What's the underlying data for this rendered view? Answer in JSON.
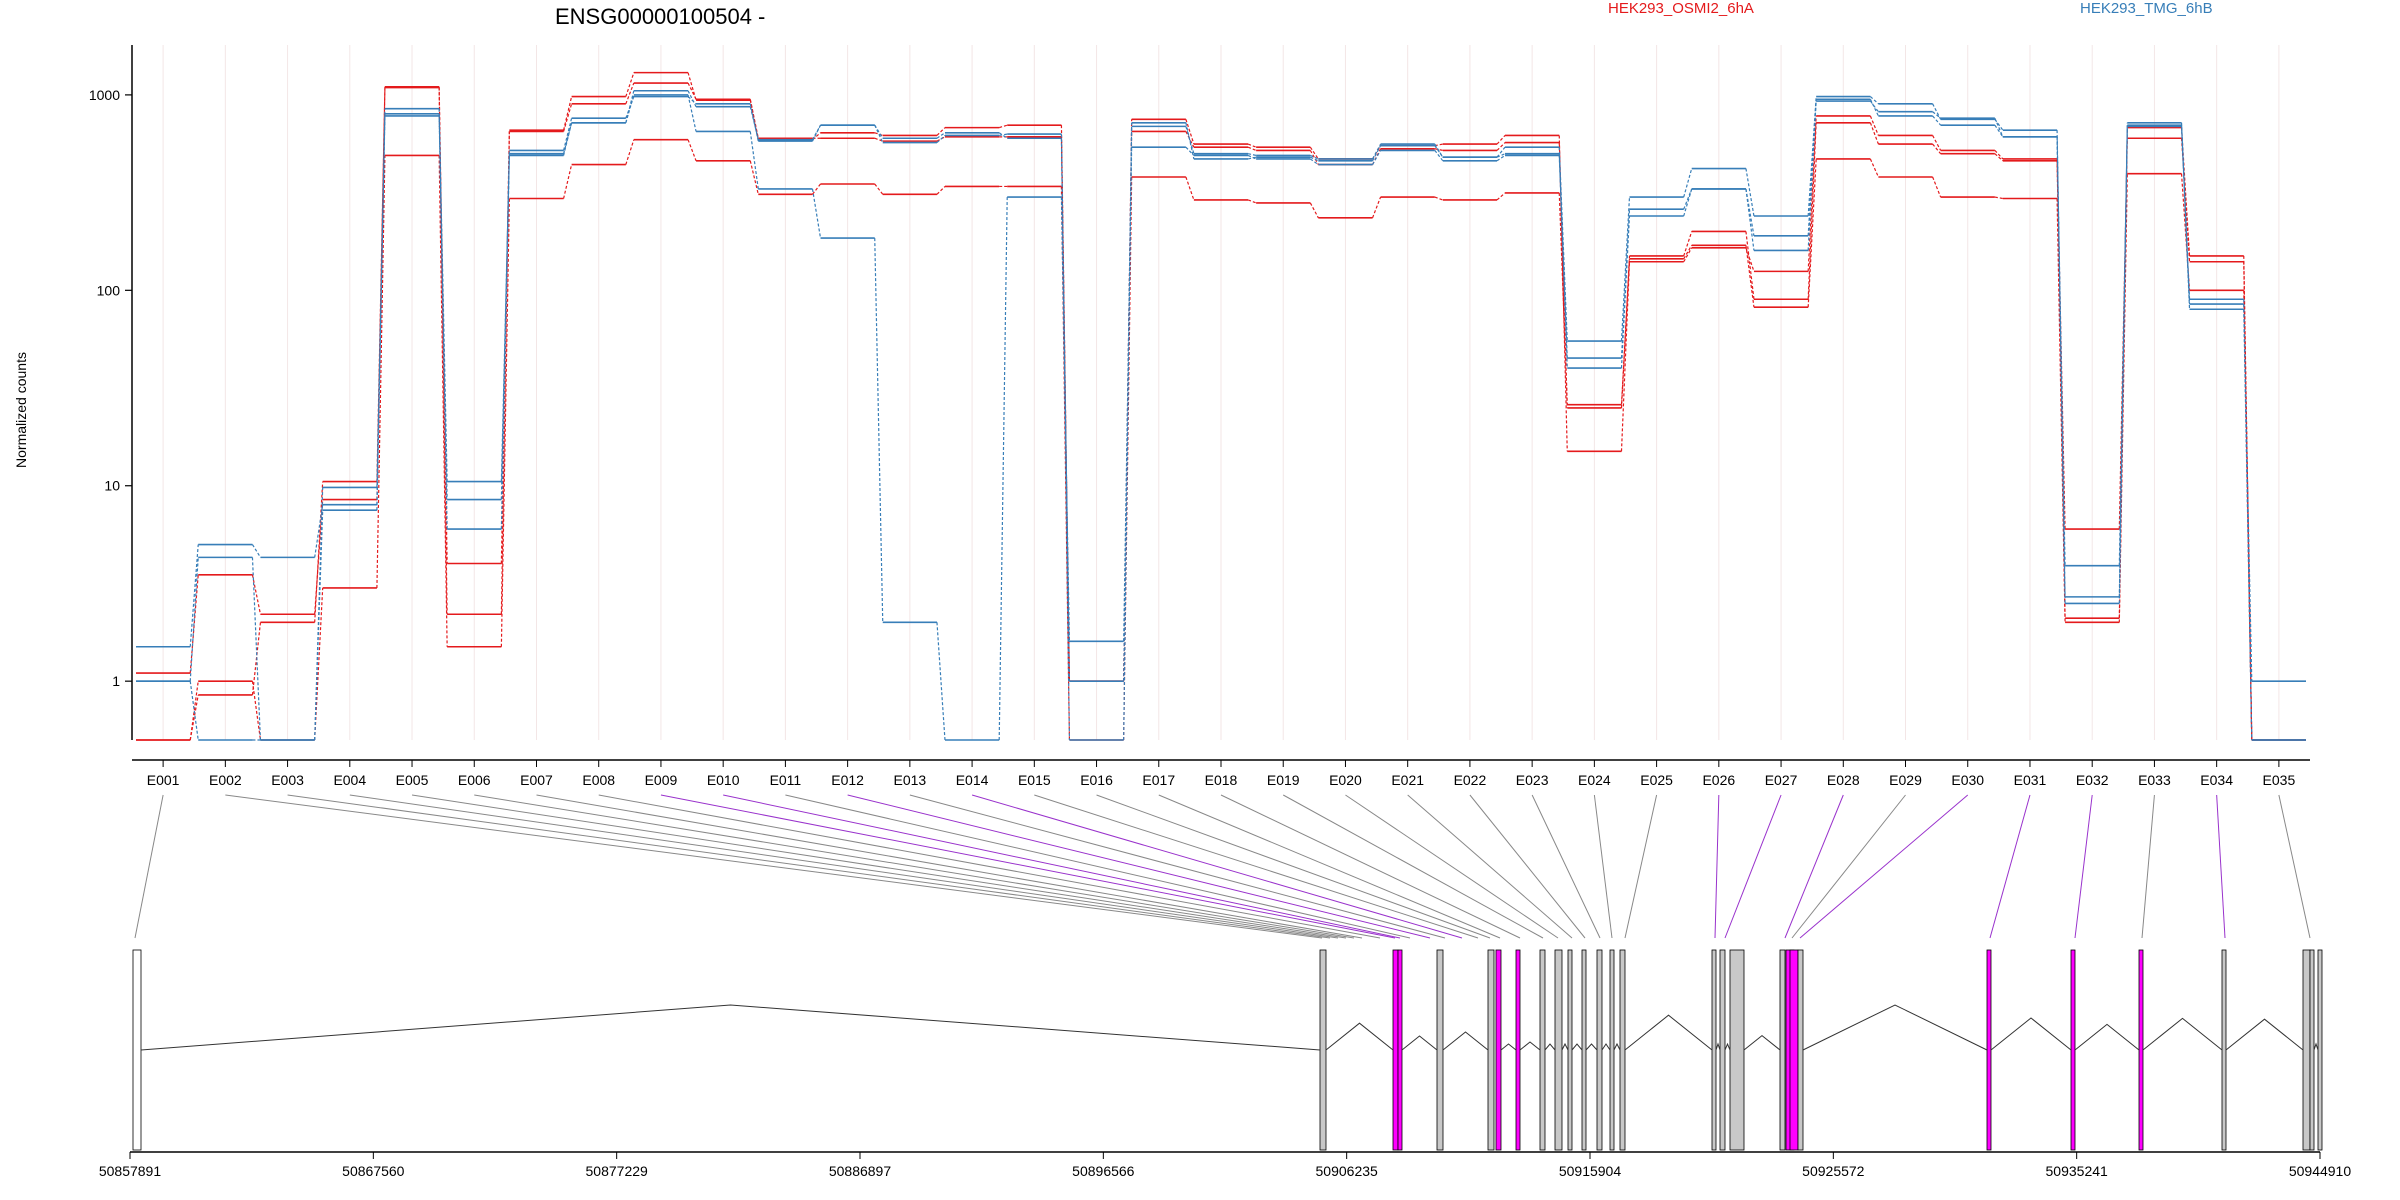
{
  "chart_data": {
    "type": "line",
    "title": "ENSG00000100504 -",
    "ylabel": "Normalized counts",
    "yscale": "log",
    "ylim": [
      0.5,
      1800
    ],
    "yticks": [
      "1",
      "10",
      "100",
      "1000"
    ],
    "ytick_values": [
      1,
      10,
      100,
      1000
    ],
    "legend_placement": "top",
    "grid": "vertical",
    "categories": [
      "E001",
      "E002",
      "E003",
      "E004",
      "E005",
      "E006",
      "E007",
      "E008",
      "E009",
      "E010",
      "E011",
      "E012",
      "E013",
      "E014",
      "E015",
      "E016",
      "E017",
      "E018",
      "E019",
      "E020",
      "E021",
      "E022",
      "E023",
      "E024",
      "E025",
      "E026",
      "E027",
      "E028",
      "E029",
      "E030",
      "E031",
      "E032",
      "E033",
      "E034",
      "E035"
    ],
    "groups": [
      {
        "name": "HEK293_OSMI2_6hA",
        "color": "#e41a1c"
      },
      {
        "name": "HEK293_TMG_6hB",
        "color": "#377eb8"
      }
    ],
    "series": [
      {
        "group": 0,
        "values": [
          1.1,
          3.5,
          2.2,
          8.5,
          1100,
          4.0,
          650,
          900,
          1150,
          950,
          600,
          600,
          580,
          610,
          610,
          1.0,
          650,
          540,
          520,
          440,
          530,
          520,
          570,
          25,
          150,
          200,
          90,
          720,
          560,
          500,
          460,
          6,
          600,
          140,
          0.5
        ]
      },
      {
        "group": 0,
        "values": [
          0.5,
          0.85,
          2.0,
          10.5,
          1090,
          2.2,
          660,
          980,
          1300,
          940,
          590,
          640,
          620,
          680,
          700,
          1.0,
          750,
          560,
          540,
          470,
          550,
          560,
          620,
          15,
          140,
          165,
          125,
          780,
          620,
          520,
          470,
          2.1,
          680,
          150,
          0.5
        ]
      },
      {
        "group": 0,
        "values": [
          0.5,
          1.0,
          0.5,
          3.0,
          490,
          1.5,
          295,
          440,
          590,
          460,
          310,
          350,
          310,
          340,
          340,
          0.5,
          380,
          290,
          280,
          235,
          300,
          290,
          315,
          26,
          145,
          170,
          82,
          470,
          380,
          300,
          295,
          2.0,
          395,
          100,
          0.5
        ]
      },
      {
        "group": 1,
        "values": [
          1.5,
          5.0,
          4.3,
          8.0,
          850,
          10.5,
          500,
          720,
          1000,
          650,
          330,
          185,
          2.0,
          0.5,
          300,
          1.6,
          540,
          490,
          470,
          440,
          520,
          460,
          490,
          45,
          260,
          330,
          160,
          950,
          780,
          700,
          610,
          3.9,
          690,
          90,
          0.5
        ]
      },
      {
        "group": 1,
        "values": [
          1.0,
          4.3,
          0.5,
          9.8,
          800,
          8.5,
          520,
          760,
          980,
          900,
          580,
          700,
          570,
          620,
          630,
          1.0,
          690,
          500,
          490,
          470,
          560,
          480,
          540,
          55,
          300,
          420,
          240,
          980,
          900,
          750,
          660,
          2.5,
          720,
          85,
          1.0
        ]
      },
      {
        "group": 1,
        "values": [
          1.0,
          0.5,
          0.5,
          7.5,
          780,
          6.0,
          490,
          720,
          1050,
          870,
          590,
          700,
          600,
          640,
          600,
          0.5,
          720,
          470,
          480,
          460,
          550,
          480,
          500,
          40,
          240,
          330,
          190,
          930,
          820,
          760,
          610,
          2.7,
          700,
          80,
          0.5
        ]
      }
    ],
    "coordinate_ticks": [
      "50857891",
      "50867560",
      "50877229",
      "50886897",
      "50896566",
      "50906235",
      "50915904",
      "50925572",
      "50935241",
      "50944910"
    ]
  },
  "colors": {
    "group_a": "#e41a1c",
    "group_b": "#377eb8",
    "highlight_exon": "#ff00ff",
    "highlight_link": "#9932cc",
    "exon_fill": "#c8c8c8"
  }
}
